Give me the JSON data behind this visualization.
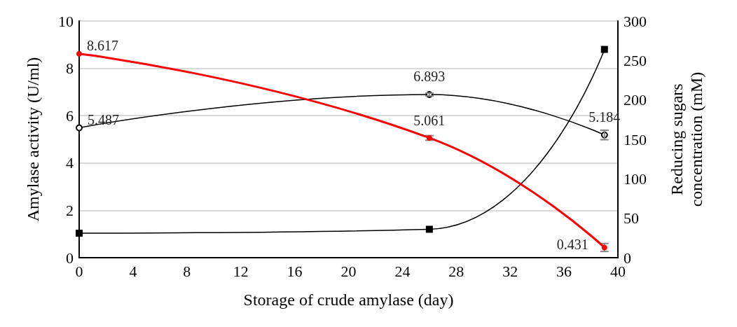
{
  "chart_data": {
    "type": "line",
    "xlabel": "Storage of crude amylase (day)",
    "ylabel": "Amylase activity (U/ml)",
    "y2label": "Reducing sugars concentration (mM)",
    "xlim": [
      0,
      40
    ],
    "xticks": [
      0,
      4,
      8,
      12,
      16,
      20,
      24,
      28,
      32,
      36,
      40
    ],
    "ylim": [
      0,
      10
    ],
    "yticks": [
      0,
      2,
      4,
      6,
      8,
      10
    ],
    "y2lim": [
      0,
      300
    ],
    "y2ticks": [
      0,
      50,
      100,
      150,
      200,
      250,
      300
    ],
    "grid": "y",
    "series": [
      {
        "color": "#ff0000",
        "x": [
          0,
          26,
          39
        ],
        "values": [
          8.617,
          5.061,
          0.431
        ],
        "value_labels": [
          "8.617",
          "5.061",
          "0.431"
        ],
        "errors": [
          null,
          0.1,
          0.17
        ],
        "marker": "circle",
        "line_style": "solid"
      },
      {
        "color": "#000000",
        "x": [
          0,
          26,
          39
        ],
        "values": [
          5.487,
          6.893,
          5.184
        ],
        "value_labels": [
          "5.487",
          "6.893",
          "5.184"
        ],
        "errors": [
          null,
          0.06,
          0.2
        ],
        "marker": "circle-open",
        "line_style": "solid"
      },
      {
        "color": "#000000",
        "x": [
          0,
          26,
          39
        ],
        "values": [
          31,
          36,
          264
        ],
        "axis": "y2",
        "marker": "square",
        "line_style": "solid"
      }
    ]
  }
}
